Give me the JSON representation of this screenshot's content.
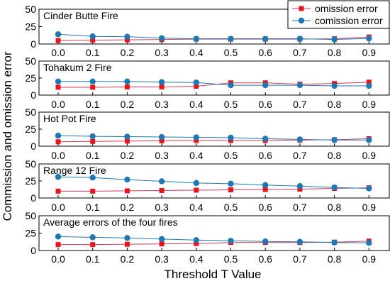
{
  "figure": {
    "ylabel": "Commission and omission error",
    "xlabel": "Threshold T Value"
  },
  "colors": {
    "omission": "#e8141b",
    "comission": "#1f77b4",
    "omission_line": "#d03a5a",
    "comission_line": "#1f7aa8"
  },
  "legend": {
    "position": "top-right",
    "items": [
      {
        "label": "omission error",
        "marker": "square",
        "color": "#e8141b"
      },
      {
        "label": "comission error",
        "marker": "circle",
        "color": "#1f77b4"
      }
    ]
  },
  "chart_data": [
    {
      "type": "line",
      "title": "Cinder Butte Fire",
      "x": [
        0.0,
        0.1,
        0.2,
        0.3,
        0.4,
        0.5,
        0.6,
        0.7,
        0.8,
        0.9
      ],
      "xticklabels": [
        "0.0",
        "0.1",
        "0.2",
        "0.3",
        "0.4",
        "0.5",
        "0.6",
        "0.7",
        "0.8",
        "0.9"
      ],
      "ylim": [
        0,
        50
      ],
      "yticks": [
        0,
        25,
        50
      ],
      "series": [
        {
          "name": "omission error",
          "values": [
            5,
            5.5,
            6,
            6.5,
            7,
            7,
            7,
            7,
            7.5,
            10
          ]
        },
        {
          "name": "comission error",
          "values": [
            14,
            11,
            10.5,
            8.5,
            7.5,
            7.5,
            7.5,
            7.5,
            6.5,
            8
          ]
        }
      ]
    },
    {
      "type": "line",
      "title": "Tohakum 2 Fire",
      "x": [
        0.0,
        0.1,
        0.2,
        0.3,
        0.4,
        0.5,
        0.6,
        0.7,
        0.8,
        0.9
      ],
      "xticklabels": [
        "0.0",
        "0.1",
        "0.2",
        "0.3",
        "0.4",
        "0.5",
        "0.6",
        "0.7",
        "0.8",
        "0.9"
      ],
      "ylim": [
        0,
        50
      ],
      "yticks": [
        0,
        25,
        50
      ],
      "series": [
        {
          "name": "omission error",
          "values": [
            11.5,
            11.5,
            12,
            12,
            13,
            18,
            18,
            16,
            17,
            19
          ]
        },
        {
          "name": "comission error",
          "values": [
            20,
            20,
            20,
            19,
            18.5,
            14.5,
            14.5,
            14.5,
            13.5,
            13.5
          ]
        }
      ]
    },
    {
      "type": "line",
      "title": "Hot Pot Fire",
      "x": [
        0.0,
        0.1,
        0.2,
        0.3,
        0.4,
        0.5,
        0.6,
        0.7,
        0.8,
        0.9
      ],
      "xticklabels": [
        "0.0",
        "0.1",
        "0.2",
        "0.3",
        "0.4",
        "0.5",
        "0.6",
        "0.7",
        "0.8",
        "0.9"
      ],
      "ylim": [
        0,
        50
      ],
      "yticks": [
        0,
        25,
        50
      ],
      "series": [
        {
          "name": "omission error",
          "values": [
            6.5,
            7,
            7.5,
            8,
            8.5,
            8.5,
            8.5,
            9,
            9.5,
            11
          ]
        },
        {
          "name": "comission error",
          "values": [
            15.5,
            14.5,
            14,
            13.5,
            13,
            12.5,
            11,
            10,
            9,
            9
          ]
        }
      ]
    },
    {
      "type": "line",
      "title": "Range 12 Fire",
      "x": [
        0.0,
        0.1,
        0.2,
        0.3,
        0.4,
        0.5,
        0.6,
        0.7,
        0.8,
        0.9
      ],
      "xticklabels": [
        "0.0",
        "0.1",
        "0.2",
        "0.3",
        "0.4",
        "0.5",
        "0.6",
        "0.7",
        "0.8",
        "0.9"
      ],
      "ylim": [
        0,
        50
      ],
      "yticks": [
        0,
        25,
        50
      ],
      "series": [
        {
          "name": "omission error",
          "values": [
            10,
            10,
            10.5,
            11,
            11.5,
            12,
            12.5,
            13,
            14,
            15
          ]
        },
        {
          "name": "comission error",
          "values": [
            31,
            30,
            27,
            24.5,
            22,
            21,
            19,
            17.5,
            15.5,
            14
          ]
        }
      ]
    },
    {
      "type": "line",
      "title": "Average errors of the four fires",
      "x": [
        0.0,
        0.1,
        0.2,
        0.3,
        0.4,
        0.5,
        0.6,
        0.7,
        0.8,
        0.9
      ],
      "xticklabels": [
        "0.0",
        "0.1",
        "0.2",
        "0.3",
        "0.4",
        "0.5",
        "0.6",
        "0.7",
        "0.8",
        "0.9"
      ],
      "ylim": [
        0,
        50
      ],
      "yticks": [
        0,
        25,
        50
      ],
      "series": [
        {
          "name": "omission error",
          "values": [
            8.5,
            8.5,
            9,
            9.5,
            10,
            11.5,
            11.5,
            11.5,
            12,
            13.5
          ]
        },
        {
          "name": "comission error",
          "values": [
            20,
            19,
            18,
            16.5,
            15,
            14,
            13,
            12.5,
            11.5,
            11
          ]
        }
      ]
    }
  ]
}
